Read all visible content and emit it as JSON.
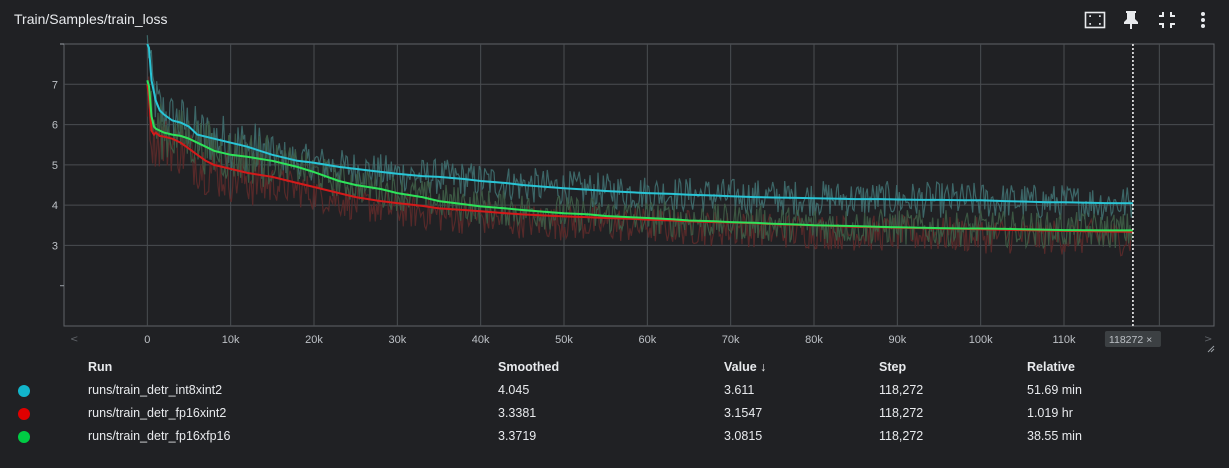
{
  "title": "Train/Samples/train_loss",
  "toolbar": {
    "icons": [
      "fit-domain-icon",
      "pin-icon",
      "collapse-icon",
      "more-vert-icon"
    ]
  },
  "chart_data": {
    "type": "line",
    "title": "",
    "xlabel": "",
    "ylabel": "",
    "xlim": [
      -10000,
      128000
    ],
    "ylim": [
      1,
      8
    ],
    "xticks": [
      0,
      10000,
      20000,
      30000,
      40000,
      50000,
      60000,
      70000,
      80000,
      90000,
      100000,
      110000
    ],
    "xtick_labels": [
      "0",
      "10k",
      "20k",
      "30k",
      "40k",
      "50k",
      "60k",
      "70k",
      "80k",
      "90k",
      "100k",
      "110k"
    ],
    "yticks": [
      3,
      4,
      5,
      6,
      7
    ],
    "ytick_labels": [
      "3",
      "4",
      "5",
      "6",
      "7"
    ],
    "cursor_step": 118272,
    "cursor_label": "118272",
    "grid": true,
    "series": [
      {
        "name": "runs/train_detr_int8xint2",
        "color": "#29c5d6",
        "raw_color": "#3e6a6b",
        "smoothed": [
          [
            0,
            8.0
          ],
          [
            200,
            7.9
          ],
          [
            500,
            7.1
          ],
          [
            1000,
            6.6
          ],
          [
            1500,
            6.35
          ],
          [
            2000,
            6.25
          ],
          [
            3000,
            6.1
          ],
          [
            4000,
            6.05
          ],
          [
            5000,
            5.95
          ],
          [
            6000,
            5.75
          ],
          [
            8000,
            5.65
          ],
          [
            10000,
            5.55
          ],
          [
            12000,
            5.45
          ],
          [
            15000,
            5.25
          ],
          [
            18000,
            5.1
          ],
          [
            20000,
            5.05
          ],
          [
            23000,
            4.95
          ],
          [
            25000,
            4.9
          ],
          [
            27000,
            4.85
          ],
          [
            30000,
            4.78
          ],
          [
            33000,
            4.72
          ],
          [
            35000,
            4.7
          ],
          [
            38000,
            4.65
          ],
          [
            40000,
            4.6
          ],
          [
            43000,
            4.55
          ],
          [
            45000,
            4.5
          ],
          [
            48000,
            4.45
          ],
          [
            50000,
            4.42
          ],
          [
            53000,
            4.38
          ],
          [
            55000,
            4.35
          ],
          [
            58000,
            4.32
          ],
          [
            60000,
            4.3
          ],
          [
            63000,
            4.28
          ],
          [
            65000,
            4.26
          ],
          [
            68000,
            4.24
          ],
          [
            70000,
            4.22
          ],
          [
            73000,
            4.2
          ],
          [
            75000,
            4.19
          ],
          [
            78000,
            4.18
          ],
          [
            80000,
            4.17
          ],
          [
            83000,
            4.16
          ],
          [
            85000,
            4.15
          ],
          [
            88000,
            4.15
          ],
          [
            90000,
            4.14
          ],
          [
            93000,
            4.13
          ],
          [
            95000,
            4.13
          ],
          [
            98000,
            4.12
          ],
          [
            100000,
            4.12
          ],
          [
            103000,
            4.1
          ],
          [
            105000,
            4.09
          ],
          [
            108000,
            4.07
          ],
          [
            110000,
            4.07
          ],
          [
            113000,
            4.06
          ],
          [
            115000,
            4.05
          ],
          [
            118272,
            4.045
          ]
        ]
      },
      {
        "name": "runs/train_detr_fp16xint2",
        "color": "#d41a1a",
        "raw_color": "#5a2a2a",
        "smoothed": [
          [
            0,
            7.0
          ],
          [
            200,
            6.7
          ],
          [
            500,
            5.85
          ],
          [
            800,
            5.75
          ],
          [
            1000,
            5.8
          ],
          [
            1500,
            5.72
          ],
          [
            2000,
            5.7
          ],
          [
            3000,
            5.65
          ],
          [
            4000,
            5.55
          ],
          [
            5000,
            5.4
          ],
          [
            6000,
            5.25
          ],
          [
            7000,
            5.1
          ],
          [
            8000,
            5.0
          ],
          [
            9000,
            4.95
          ],
          [
            10000,
            4.9
          ],
          [
            12000,
            4.8
          ],
          [
            15000,
            4.7
          ],
          [
            18000,
            4.55
          ],
          [
            20000,
            4.45
          ],
          [
            23000,
            4.3
          ],
          [
            25000,
            4.2
          ],
          [
            28000,
            4.1
          ],
          [
            30000,
            4.05
          ],
          [
            33000,
            3.98
          ],
          [
            35000,
            3.92
          ],
          [
            38000,
            3.88
          ],
          [
            40000,
            3.85
          ],
          [
            43000,
            3.8
          ],
          [
            45000,
            3.77
          ],
          [
            48000,
            3.74
          ],
          [
            50000,
            3.72
          ],
          [
            53000,
            3.7
          ],
          [
            55000,
            3.68
          ],
          [
            58000,
            3.66
          ],
          [
            60000,
            3.64
          ],
          [
            63000,
            3.62
          ],
          [
            65000,
            3.6
          ],
          [
            68000,
            3.58
          ],
          [
            70000,
            3.57
          ],
          [
            73000,
            3.55
          ],
          [
            75000,
            3.53
          ],
          [
            78000,
            3.51
          ],
          [
            80000,
            3.5
          ],
          [
            83000,
            3.48
          ],
          [
            85000,
            3.46
          ],
          [
            88000,
            3.45
          ],
          [
            90000,
            3.44
          ],
          [
            93000,
            3.43
          ],
          [
            95000,
            3.42
          ],
          [
            98000,
            3.41
          ],
          [
            100000,
            3.4
          ],
          [
            103000,
            3.39
          ],
          [
            105000,
            3.38
          ],
          [
            108000,
            3.37
          ],
          [
            110000,
            3.36
          ],
          [
            113000,
            3.35
          ],
          [
            115000,
            3.345
          ],
          [
            118272,
            3.3381
          ]
        ]
      },
      {
        "name": "runs/train_detr_fp16xfp16",
        "color": "#2ee35a",
        "raw_color": "#3d5a44",
        "smoothed": [
          [
            0,
            7.1
          ],
          [
            200,
            6.95
          ],
          [
            500,
            6.2
          ],
          [
            800,
            5.95
          ],
          [
            1000,
            5.9
          ],
          [
            1500,
            5.85
          ],
          [
            2000,
            5.8
          ],
          [
            3000,
            5.75
          ],
          [
            4000,
            5.72
          ],
          [
            5000,
            5.65
          ],
          [
            6000,
            5.55
          ],
          [
            7000,
            5.45
          ],
          [
            8000,
            5.35
          ],
          [
            9000,
            5.3
          ],
          [
            10000,
            5.25
          ],
          [
            12000,
            5.2
          ],
          [
            15000,
            5.1
          ],
          [
            18000,
            4.95
          ],
          [
            20000,
            4.82
          ],
          [
            23000,
            4.6
          ],
          [
            25000,
            4.5
          ],
          [
            28000,
            4.4
          ],
          [
            30000,
            4.3
          ],
          [
            33000,
            4.2
          ],
          [
            35000,
            4.1
          ],
          [
            38000,
            4.02
          ],
          [
            40000,
            3.97
          ],
          [
            43000,
            3.92
          ],
          [
            45000,
            3.88
          ],
          [
            48000,
            3.83
          ],
          [
            50000,
            3.8
          ],
          [
            53000,
            3.77
          ],
          [
            55000,
            3.73
          ],
          [
            58000,
            3.7
          ],
          [
            60000,
            3.68
          ],
          [
            63000,
            3.65
          ],
          [
            65000,
            3.62
          ],
          [
            68000,
            3.6
          ],
          [
            70000,
            3.58
          ],
          [
            73000,
            3.56
          ],
          [
            75000,
            3.54
          ],
          [
            78000,
            3.52
          ],
          [
            80000,
            3.5
          ],
          [
            83000,
            3.49
          ],
          [
            85000,
            3.48
          ],
          [
            88000,
            3.46
          ],
          [
            90000,
            3.45
          ],
          [
            93000,
            3.44
          ],
          [
            95000,
            3.43
          ],
          [
            98000,
            3.42
          ],
          [
            100000,
            3.42
          ],
          [
            103000,
            3.41
          ],
          [
            105000,
            3.4
          ],
          [
            108000,
            3.39
          ],
          [
            110000,
            3.38
          ],
          [
            113000,
            3.375
          ],
          [
            115000,
            3.373
          ],
          [
            118272,
            3.3719
          ]
        ]
      }
    ]
  },
  "table": {
    "headers": {
      "run": "Run",
      "smoothed": "Smoothed",
      "value": "Value ↓",
      "step": "Step",
      "relative": "Relative"
    },
    "rows": [
      {
        "color": "#12b5cb",
        "run": "runs/train_detr_int8xint2",
        "smoothed": "4.045",
        "value": "3.611",
        "step": "118,272",
        "relative": "51.69 min"
      },
      {
        "color": "#e00000",
        "run": "runs/train_detr_fp16xint2",
        "smoothed": "3.3381",
        "value": "3.1547",
        "step": "118,272",
        "relative": "1.019 hr"
      },
      {
        "color": "#00cc44",
        "run": "runs/train_detr_fp16xfp16",
        "smoothed": "3.3719",
        "value": "3.0815",
        "step": "118,272",
        "relative": "38.55 min"
      }
    ]
  }
}
